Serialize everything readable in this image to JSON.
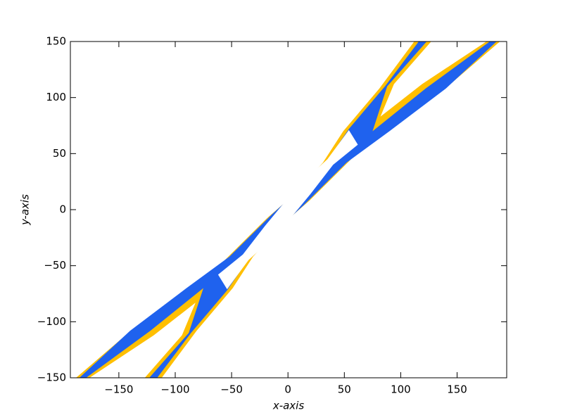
{
  "chart_data": {
    "type": "contour",
    "xlabel": "x-axis",
    "ylabel": "y-axis",
    "xlim": [
      -193,
      194
    ],
    "ylim": [
      -150,
      150
    ],
    "xticks": [
      {
        "value": -150,
        "label": "−150"
      },
      {
        "value": -100,
        "label": "−100"
      },
      {
        "value": -50,
        "label": "−50"
      },
      0,
      50,
      100,
      150
    ],
    "yticks": [
      {
        "value": -150,
        "label": "−150"
      },
      {
        "value": -100,
        "label": "−100"
      },
      {
        "value": -50,
        "label": "−50"
      },
      0,
      50,
      100,
      150
    ],
    "series": [
      {
        "color": "#ffbf00",
        "x": [
          112,
          81,
          49,
          31,
          6,
          -19,
          -57,
          -94,
          -144,
          -188,
          -176,
          -119,
          -82,
          -94,
          -127,
          -112,
          -81,
          -49,
          -31,
          -6,
          19,
          57,
          94,
          144,
          188,
          176,
          119,
          82,
          94,
          127
        ],
        "y": [
          150,
          108,
          70,
          42,
          14,
          -8,
          -46,
          -74,
          -112,
          -150,
          -150,
          -112,
          -83,
          -112,
          -150,
          -150,
          -108,
          -70,
          -42,
          -14,
          8,
          46,
          74,
          112,
          150,
          150,
          112,
          83,
          112,
          150
        ]
      },
      {
        "color": "#1f62ee",
        "x": [
          116,
          86,
          54,
          37,
          10,
          -14,
          -52,
          -90,
          -140,
          -185,
          -179,
          -122,
          -75,
          -88,
          -123,
          -116,
          -86,
          -54,
          -37,
          -10,
          14,
          52,
          90,
          140,
          185,
          179,
          122,
          75,
          88,
          123
        ],
        "y": [
          150,
          110,
          72,
          47,
          18,
          -4,
          -42,
          -70,
          -108,
          -150,
          -150,
          -108,
          -70,
          -110,
          -150,
          -150,
          -110,
          -72,
          -47,
          -18,
          4,
          42,
          70,
          108,
          150,
          150,
          108,
          70,
          110,
          150
        ]
      },
      {
        "color": "#ffffff",
        "x": [
          54,
          62,
          40,
          20,
          -8,
          -35,
          -54,
          -62,
          -40,
          -20,
          8,
          35
        ],
        "y": [
          71,
          58,
          40,
          14,
          -20,
          -45,
          -71,
          -58,
          -40,
          -14,
          20,
          45
        ]
      }
    ]
  }
}
